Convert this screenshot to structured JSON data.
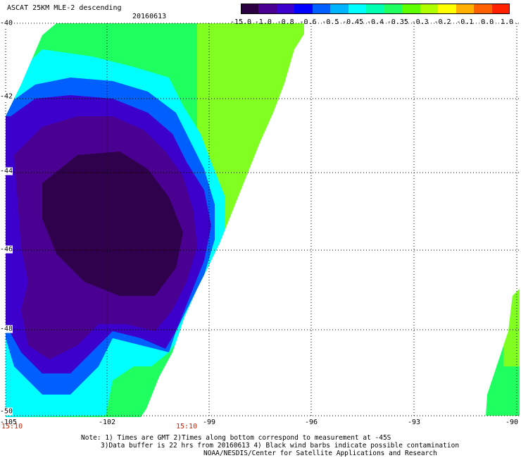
{
  "title": "ASCAT 25KM MLE-2 descending",
  "date": "20160613",
  "colorbar": {
    "labels": [
      "-15.0",
      "-1.0",
      "-0.8",
      "-0.6",
      "-0.5",
      "-0.45",
      "-0.4",
      "-0.35",
      "-0.3",
      "-0.2",
      "-0.1",
      "0.0",
      "1.0"
    ],
    "colors": [
      "#2a0040",
      "#4a0090",
      "#3d00cc",
      "#0000ff",
      "#0060ff",
      "#00b4ff",
      "#00ffff",
      "#00ffb0",
      "#20ff60",
      "#60ff00",
      "#b0ff00",
      "#ffff00",
      "#ffb000",
      "#ff6000",
      "#ff2000"
    ]
  },
  "x_axis": {
    "ticks": [
      "-105",
      "-102",
      "-99",
      "-96",
      "-93",
      "-90"
    ]
  },
  "y_axis": {
    "ticks": [
      "-40",
      "-42",
      "-44",
      "-46",
      "-48",
      "-50"
    ]
  },
  "times": [
    "15:10",
    "15:10"
  ],
  "notes": [
    "Note: 1) Times are GMT 2)Times along bottom correspond to measurement at -45S",
    "3)Data buffer is 22 hrs from 20160613 4) Black wind barbs indicate possible contamination",
    "NOAA/NESDIS/Center for Satellite Applications and Research"
  ]
}
